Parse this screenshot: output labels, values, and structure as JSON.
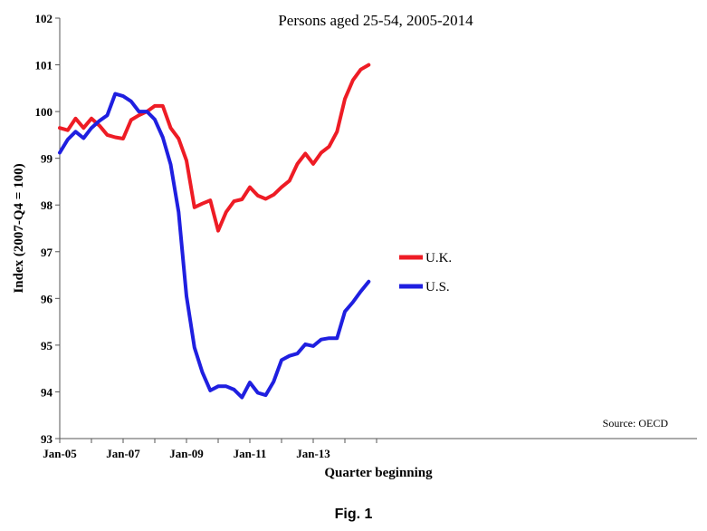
{
  "figure": {
    "caption": "Fig. 1"
  },
  "chart_data": {
    "type": "line",
    "title": "Persons aged 25-54, 2005-2014",
    "xlabel": "Quarter beginning",
    "ylabel": "Index (2007-Q4 = 100)",
    "source_note": "Source: OECD",
    "ylim": [
      93,
      102
    ],
    "y_ticks": [
      "93",
      "94",
      "95",
      "96",
      "97",
      "98",
      "99",
      "100",
      "101",
      "102"
    ],
    "x_ticks": [
      "Jan-05",
      "Jan-07",
      "Jan-09",
      "Jan-11",
      "Jan-13"
    ],
    "grid": false,
    "legend_position": "center",
    "categories": [
      "2005-Q1",
      "2005-Q2",
      "2005-Q3",
      "2005-Q4",
      "2006-Q1",
      "2006-Q2",
      "2006-Q3",
      "2006-Q4",
      "2007-Q1",
      "2007-Q2",
      "2007-Q3",
      "2007-Q4",
      "2008-Q1",
      "2008-Q2",
      "2008-Q3",
      "2008-Q4",
      "2009-Q1",
      "2009-Q2",
      "2009-Q3",
      "2009-Q4",
      "2010-Q1",
      "2010-Q2",
      "2010-Q3",
      "2010-Q4",
      "2011-Q1",
      "2011-Q2",
      "2011-Q3",
      "2011-Q4",
      "2012-Q1",
      "2012-Q2",
      "2012-Q3",
      "2012-Q4",
      "2013-Q1",
      "2013-Q2",
      "2013-Q3",
      "2013-Q4",
      "2014-Q1",
      "2014-Q2",
      "2014-Q3",
      "2014-Q4"
    ],
    "series": [
      {
        "name": "U.K.",
        "color": "#ee1c25",
        "values": [
          99.65,
          99.6,
          99.85,
          99.65,
          99.85,
          99.7,
          99.5,
          99.45,
          99.42,
          99.82,
          99.92,
          100.0,
          100.12,
          100.12,
          99.65,
          99.42,
          98.95,
          97.95,
          98.03,
          98.1,
          97.45,
          97.85,
          98.08,
          98.12,
          98.38,
          98.2,
          98.13,
          98.22,
          98.38,
          98.52,
          98.88,
          99.1,
          98.88,
          99.12,
          99.25,
          99.57,
          100.27,
          100.67,
          100.9,
          101.0
        ]
      },
      {
        "name": "U.S.",
        "color": "#1f1fe0",
        "values": [
          99.12,
          99.4,
          99.57,
          99.43,
          99.65,
          99.8,
          99.92,
          100.38,
          100.33,
          100.22,
          100.0,
          100.0,
          99.83,
          99.45,
          98.87,
          97.85,
          96.05,
          94.95,
          94.42,
          94.03,
          94.12,
          94.12,
          94.05,
          93.88,
          94.2,
          93.98,
          93.93,
          94.22,
          94.68,
          94.77,
          94.82,
          95.02,
          94.98,
          95.12,
          95.15,
          95.15,
          95.72,
          95.92,
          96.15,
          96.36
        ]
      }
    ]
  }
}
